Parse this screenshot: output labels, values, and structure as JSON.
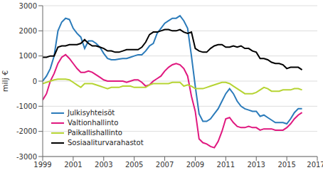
{
  "chart_data": {
    "type": "line",
    "y_label": "milj €",
    "grid": true,
    "legend": "lower left",
    "xlim": [
      1999,
      2017
    ],
    "xticks": [
      1999,
      2001,
      2003,
      2005,
      2007,
      2009,
      2011,
      2013,
      2015,
      2017
    ],
    "ylim": [
      -3000,
      3000
    ],
    "yticks": [
      -3000,
      -2000,
      -1000,
      0,
      1000,
      2000,
      3000
    ],
    "x": [
      1999,
      1999.25,
      1999.5,
      1999.75,
      2000,
      2000.25,
      2000.5,
      2000.75,
      2001,
      2001.25,
      2001.5,
      2001.75,
      2002,
      2002.25,
      2002.5,
      2002.75,
      2003,
      2003.25,
      2003.5,
      2003.75,
      2004,
      2004.25,
      2004.5,
      2004.75,
      2005,
      2005.25,
      2005.5,
      2005.75,
      2006,
      2006.25,
      2006.5,
      2006.75,
      2007,
      2007.25,
      2007.5,
      2007.75,
      2008,
      2008.25,
      2008.5,
      2008.75,
      2009,
      2009.25,
      2009.5,
      2009.75,
      2010,
      2010.25,
      2010.5,
      2010.75,
      2011,
      2011.25,
      2011.5,
      2011.75,
      2012,
      2012.25,
      2012.5,
      2012.75,
      2013,
      2013.25,
      2013.5,
      2013.75,
      2014,
      2014.25,
      2014.5,
      2014.75,
      2015,
      2015.25,
      2015.5,
      2015.75,
      2016
    ],
    "series": [
      {
        "name": "Julkisyhteisöt",
        "color": "#2b7bba",
        "values": [
          0,
          200,
          500,
          1000,
          2000,
          2350,
          2500,
          2450,
          2100,
          1900,
          1750,
          1300,
          1600,
          1600,
          1500,
          1350,
          1100,
          900,
          850,
          850,
          880,
          900,
          900,
          950,
          1000,
          1050,
          1050,
          1200,
          1400,
          1500,
          1900,
          2100,
          2300,
          2400,
          2500,
          2500,
          2600,
          2400,
          2100,
          1000,
          -200,
          -1300,
          -1600,
          -1600,
          -1500,
          -1300,
          -1100,
          -800,
          -500,
          -300,
          -500,
          -800,
          -1000,
          -1100,
          -1150,
          -1200,
          -1200,
          -1400,
          -1350,
          -1450,
          -1550,
          -1650,
          -1650,
          -1650,
          -1700,
          -1500,
          -1250,
          -1100,
          -1100
        ]
      },
      {
        "name": "Valtionhallinto",
        "color": "#e0187f",
        "values": [
          -750,
          -500,
          0,
          300,
          700,
          950,
          1050,
          900,
          700,
          500,
          350,
          350,
          400,
          350,
          250,
          150,
          50,
          0,
          0,
          0,
          0,
          0,
          -50,
          0,
          50,
          50,
          -50,
          -200,
          -150,
          0,
          100,
          200,
          400,
          550,
          650,
          700,
          650,
          500,
          200,
          -600,
          -1200,
          -2300,
          -2450,
          -2500,
          -2600,
          -2650,
          -2400,
          -2000,
          -1500,
          -1450,
          -1650,
          -1800,
          -1850,
          -1850,
          -1800,
          -1850,
          -1850,
          -1950,
          -1900,
          -1900,
          -1900,
          -1950,
          -1950,
          -1950,
          -1850,
          -1700,
          -1500,
          -1350,
          -1250
        ]
      },
      {
        "name": "Paikallishallinto",
        "color": "#b6d433",
        "values": [
          -100,
          -50,
          0,
          50,
          80,
          80,
          80,
          50,
          -50,
          -150,
          -250,
          -100,
          -100,
          -100,
          -150,
          -200,
          -250,
          -300,
          -250,
          -250,
          -250,
          -200,
          -200,
          -200,
          -250,
          -250,
          -250,
          -250,
          -150,
          -100,
          -100,
          -100,
          -100,
          -100,
          -50,
          -50,
          -50,
          -200,
          -150,
          -200,
          -300,
          -300,
          -300,
          -250,
          -200,
          -150,
          -100,
          -50,
          -50,
          -100,
          -200,
          -300,
          -400,
          -500,
          -500,
          -500,
          -450,
          -350,
          -250,
          -300,
          -400,
          -400,
          -400,
          -350,
          -350,
          -350,
          -300,
          -300,
          -350
        ]
      },
      {
        "name": "Sosiaaliturvarahastot",
        "color": "#000000",
        "values": [
          950,
          950,
          1000,
          1000,
          1350,
          1400,
          1400,
          1450,
          1450,
          1450,
          1500,
          1650,
          1500,
          1400,
          1400,
          1350,
          1300,
          1200,
          1200,
          1150,
          1150,
          1200,
          1250,
          1250,
          1250,
          1250,
          1350,
          1550,
          1850,
          1950,
          1950,
          2000,
          2050,
          2050,
          2000,
          2000,
          2050,
          1950,
          1900,
          1950,
          1300,
          1200,
          1150,
          1150,
          1300,
          1400,
          1450,
          1450,
          1350,
          1350,
          1400,
          1350,
          1400,
          1300,
          1300,
          1200,
          1150,
          900,
          900,
          850,
          750,
          700,
          700,
          650,
          500,
          550,
          550,
          550,
          450
        ]
      }
    ]
  }
}
